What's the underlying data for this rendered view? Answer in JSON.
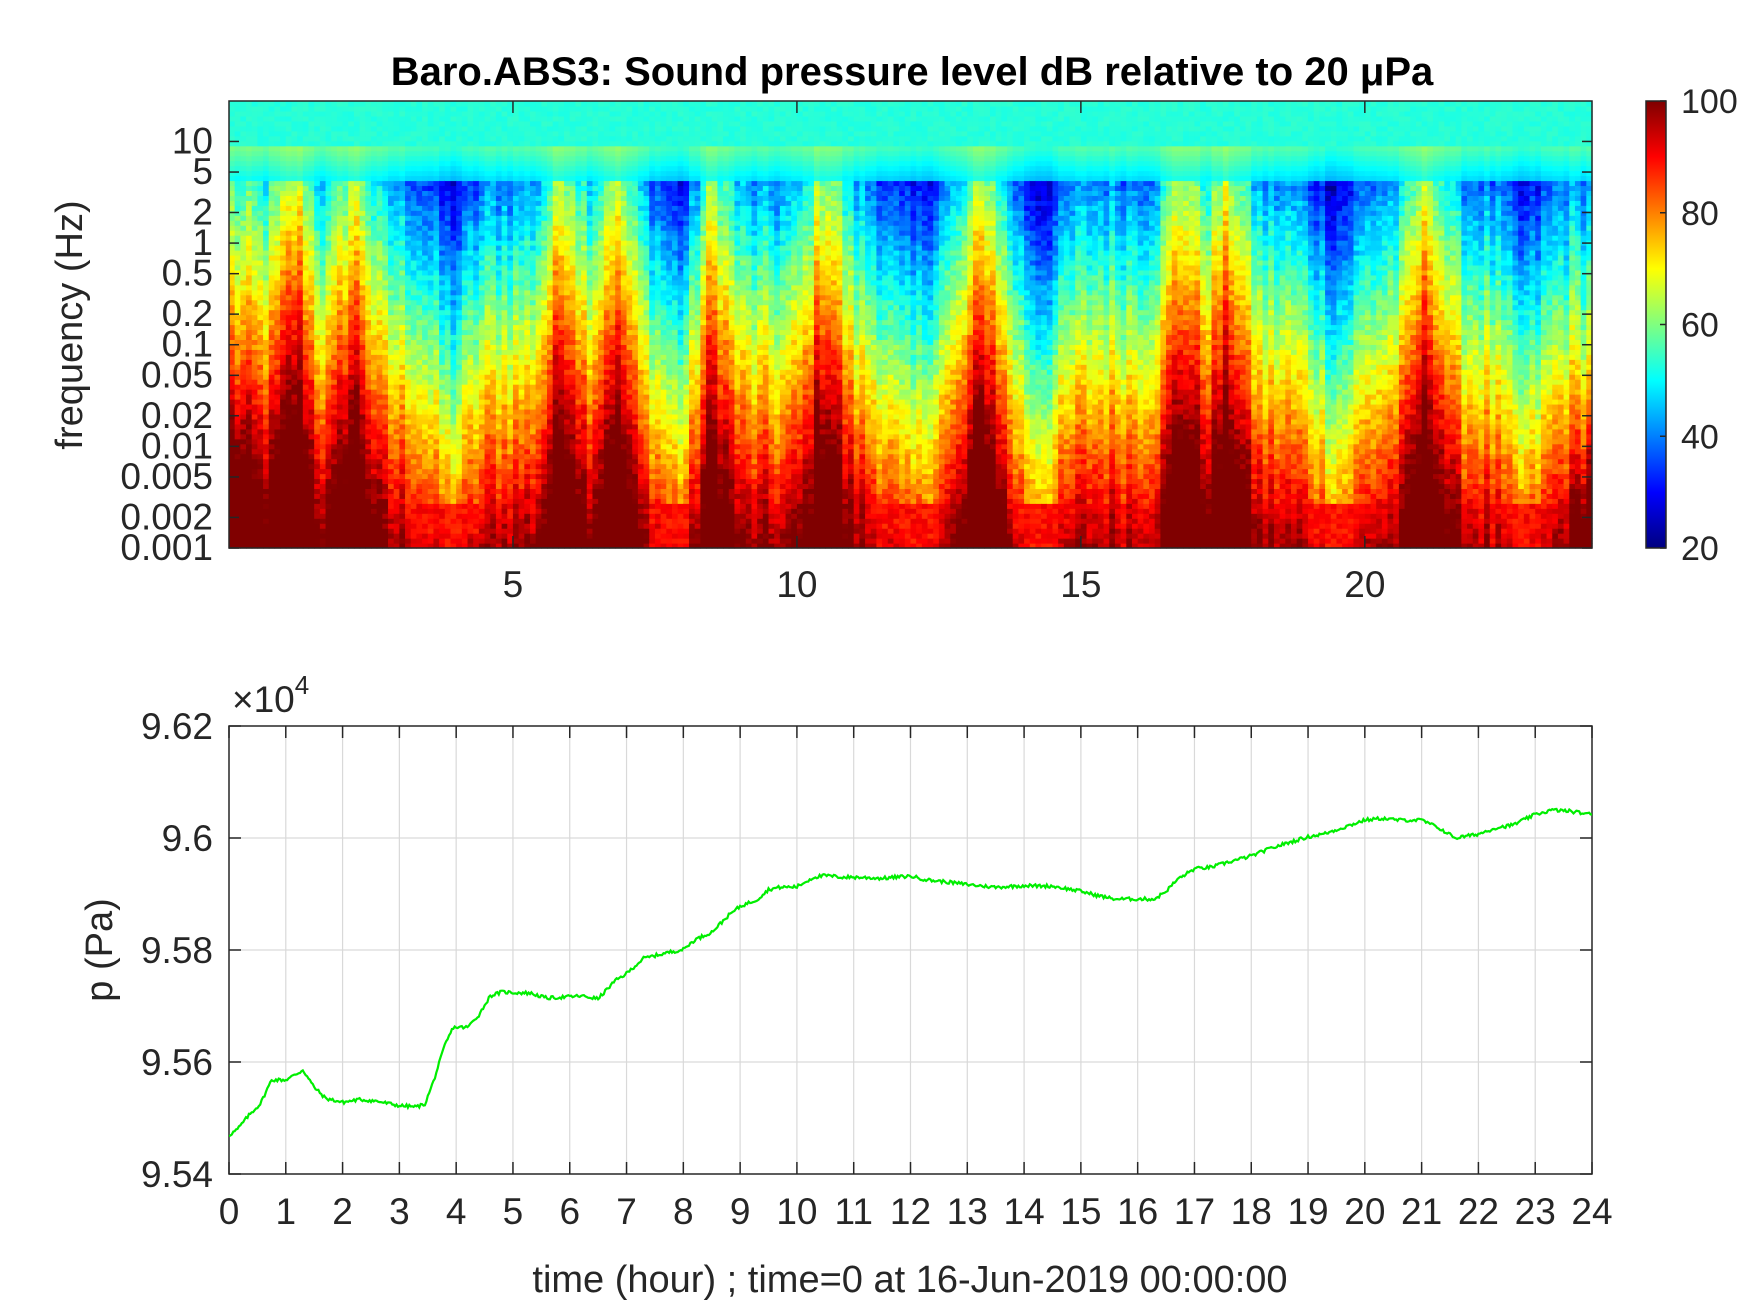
{
  "spectrogram": {
    "title": "Baro.ABS3: Sound pressure level dB relative to 20 μPa",
    "ylabel": "frequency (Hz)",
    "y_tick_labels": [
      "10",
      "5",
      "2",
      "1",
      "0.5",
      "0.2",
      "0.1",
      "0.05",
      "0.02",
      "0.01",
      "0.005",
      "0.002",
      "0.001"
    ],
    "x_tick_labels": [
      "5",
      "10",
      "15",
      "20"
    ],
    "colorbar_tick_labels": [
      "100",
      "80",
      "60",
      "40",
      "20"
    ]
  },
  "pressure_plot": {
    "ylabel": "p (Pa)",
    "exponent_label": "×10",
    "exponent_power": "4",
    "xlabel": "time (hour) ; time=0 at 16-Jun-2019 00:00:00",
    "y_tick_labels": [
      "9.62",
      "9.6",
      "9.58",
      "9.56",
      "9.54"
    ],
    "x_tick_labels": [
      "0",
      "1",
      "2",
      "3",
      "4",
      "5",
      "6",
      "7",
      "8",
      "9",
      "10",
      "11",
      "12",
      "13",
      "14",
      "15",
      "16",
      "17",
      "18",
      "19",
      "20",
      "21",
      "22",
      "23",
      "24"
    ]
  },
  "chart_data": [
    {
      "type": "heatmap",
      "title": "Baro.ABS3: Sound pressure level dB relative to 20 μPa",
      "xlabel": "",
      "ylabel": "frequency (Hz)",
      "x_unit": "hour",
      "xlim": [
        0,
        24
      ],
      "x_ticks": [
        5,
        10,
        15,
        20
      ],
      "y_scale": "log",
      "ylim_hz": [
        0.001,
        25
      ],
      "y_ticks_hz": [
        10,
        5,
        2,
        1,
        0.5,
        0.2,
        0.1,
        0.05,
        0.02,
        0.01,
        0.005,
        0.002,
        0.001
      ],
      "colormap": "jet",
      "color_range_db": [
        20,
        100
      ],
      "colorbar_ticks": [
        100,
        80,
        60,
        40,
        20
      ],
      "colorbar_position": "right",
      "grid": false,
      "event_hours": [
        1.2,
        2.2,
        5.9,
        6.8,
        8.5,
        10.5,
        13.3,
        16.8,
        17.6,
        21.1
      ],
      "quiet_hours": [
        3.9,
        8.0,
        12.0,
        14.3,
        19.5,
        22.8
      ]
    },
    {
      "type": "line",
      "xlabel": "time (hour) ; time=0 at 16-Jun-2019 00:00:00",
      "ylabel": "p (Pa)",
      "y_multiplier": "×10^4",
      "xlim": [
        0,
        24
      ],
      "ylim": [
        9.54,
        9.62
      ],
      "grid": true,
      "series": [
        {
          "color": "#00ee00",
          "x": [
            0,
            0.15,
            0.35,
            0.55,
            0.75,
            1.0,
            1.25,
            1.3,
            1.5,
            1.7,
            2.0,
            2.3,
            2.6,
            3.0,
            3.3,
            3.45,
            3.6,
            3.8,
            3.95,
            4.2,
            4.4,
            4.6,
            4.8,
            5.0,
            5.3,
            5.6,
            5.9,
            6.2,
            6.5,
            6.8,
            7.0,
            7.3,
            7.5,
            7.8,
            8.0,
            8.2,
            8.5,
            8.8,
            9.0,
            9.3,
            9.5,
            9.7,
            10.0,
            10.3,
            10.5,
            10.8,
            11.0,
            11.5,
            12.0,
            12.3,
            12.6,
            13.0,
            13.5,
            14.0,
            14.5,
            15.0,
            15.3,
            15.6,
            16.0,
            16.3,
            16.5,
            16.7,
            17.0,
            17.3,
            17.6,
            18.0,
            18.3,
            18.6,
            19.0,
            19.3,
            19.6,
            20.0,
            20.3,
            20.6,
            21.0,
            21.3,
            21.6,
            22.0,
            22.3,
            22.6,
            23.0,
            23.3,
            23.6,
            24.0
          ],
          "y": [
            9.5469,
            9.548,
            9.5505,
            9.5525,
            9.5568,
            9.5568,
            9.5582,
            9.5586,
            9.5555,
            9.5535,
            9.5528,
            9.5533,
            9.553,
            9.5522,
            9.552,
            9.5525,
            9.5565,
            9.563,
            9.5662,
            9.5662,
            9.5684,
            9.5718,
            9.5725,
            9.5724,
            9.5723,
            9.5714,
            9.5716,
            9.5718,
            9.5713,
            9.5745,
            9.5758,
            9.5785,
            9.579,
            9.5797,
            9.5801,
            9.5818,
            9.5832,
            9.5862,
            9.5878,
            9.589,
            9.5908,
            9.5912,
            9.5913,
            9.593,
            9.5933,
            9.593,
            9.593,
            9.5928,
            9.5932,
            9.5925,
            9.5922,
            9.5917,
            9.5912,
            9.5915,
            9.5914,
            9.5905,
            9.5897,
            9.5891,
            9.5891,
            9.5891,
            9.5905,
            9.5926,
            9.5945,
            9.5948,
            9.5957,
            9.5968,
            9.598,
            9.599,
            9.6002,
            9.6008,
            9.6018,
            9.6032,
            9.6035,
            9.6032,
            9.6032,
            9.6018,
            9.6,
            9.6007,
            9.6018,
            9.6023,
            9.6042,
            9.605,
            9.6048,
            9.6042
          ]
        }
      ]
    }
  ]
}
